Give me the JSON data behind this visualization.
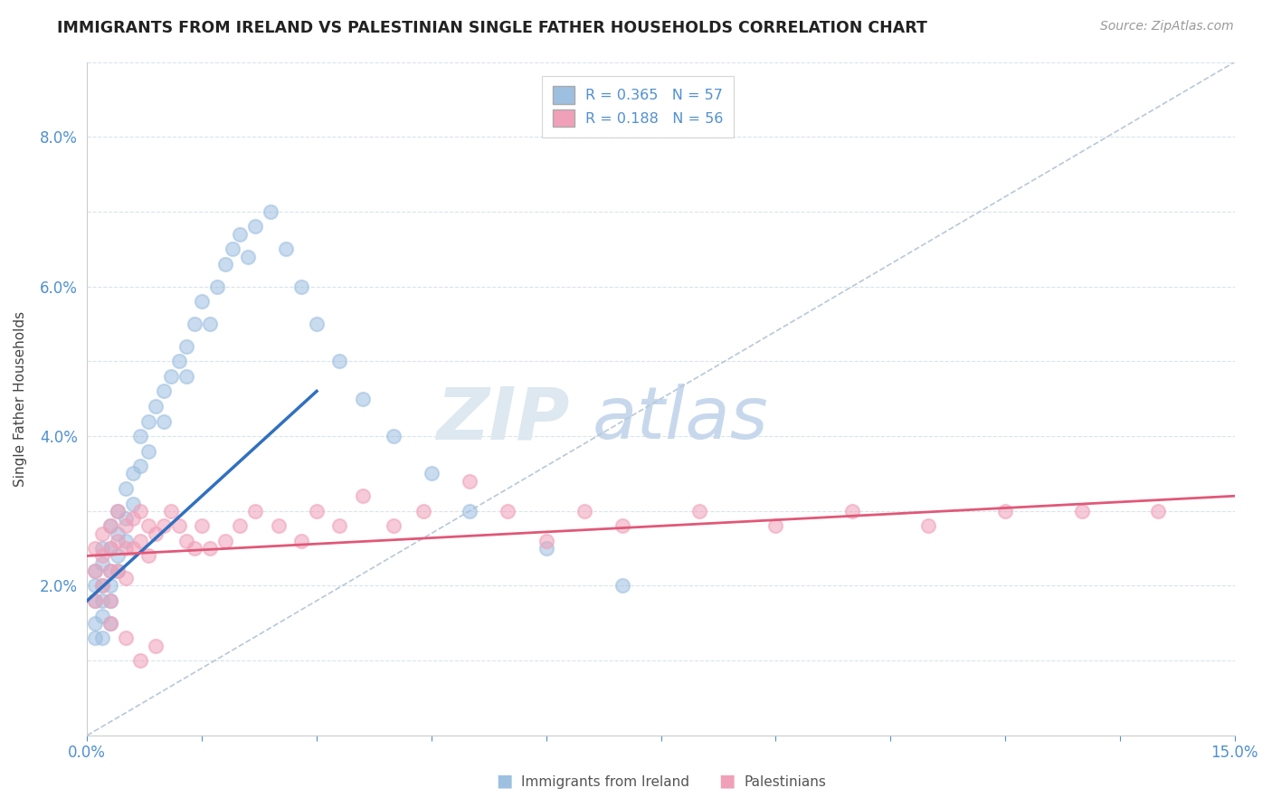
{
  "title": "IMMIGRANTS FROM IRELAND VS PALESTINIAN SINGLE FATHER HOUSEHOLDS CORRELATION CHART",
  "source": "Source: ZipAtlas.com",
  "ylabel": "Single Father Households",
  "xlim": [
    0.0,
    0.15
  ],
  "ylim": [
    0.0,
    0.09
  ],
  "xtick_vals": [
    0.0,
    0.015,
    0.03,
    0.045,
    0.06,
    0.075,
    0.09,
    0.105,
    0.12,
    0.135,
    0.15
  ],
  "ytick_vals": [
    0.0,
    0.01,
    0.02,
    0.03,
    0.04,
    0.05,
    0.06,
    0.07,
    0.08,
    0.09
  ],
  "ireland_color": "#9dbfe0",
  "palestine_color": "#f0a0b8",
  "ireland_line_color": "#3070c0",
  "palestine_line_color": "#e05878",
  "diag_color": "#b8c8d8",
  "tick_color": "#5090d0",
  "r_ireland": 0.365,
  "n_ireland": 57,
  "r_palestine": 0.188,
  "n_palestine": 56,
  "legend_label_ireland": "Immigrants from Ireland",
  "legend_label_palestine": "Palestinians",
  "ireland_x": [
    0.001,
    0.001,
    0.001,
    0.001,
    0.001,
    0.002,
    0.002,
    0.002,
    0.002,
    0.002,
    0.002,
    0.003,
    0.003,
    0.003,
    0.003,
    0.003,
    0.003,
    0.004,
    0.004,
    0.004,
    0.004,
    0.005,
    0.005,
    0.005,
    0.006,
    0.006,
    0.007,
    0.007,
    0.008,
    0.008,
    0.009,
    0.01,
    0.01,
    0.011,
    0.012,
    0.013,
    0.013,
    0.014,
    0.015,
    0.016,
    0.017,
    0.018,
    0.019,
    0.02,
    0.021,
    0.022,
    0.024,
    0.026,
    0.028,
    0.03,
    0.033,
    0.036,
    0.04,
    0.045,
    0.05,
    0.06,
    0.07
  ],
  "ireland_y": [
    0.022,
    0.02,
    0.018,
    0.015,
    0.013,
    0.025,
    0.023,
    0.02,
    0.018,
    0.016,
    0.013,
    0.028,
    0.025,
    0.022,
    0.02,
    0.018,
    0.015,
    0.03,
    0.027,
    0.024,
    0.022,
    0.033,
    0.029,
    0.026,
    0.035,
    0.031,
    0.04,
    0.036,
    0.042,
    0.038,
    0.044,
    0.046,
    0.042,
    0.048,
    0.05,
    0.052,
    0.048,
    0.055,
    0.058,
    0.055,
    0.06,
    0.063,
    0.065,
    0.067,
    0.064,
    0.068,
    0.07,
    0.065,
    0.06,
    0.055,
    0.05,
    0.045,
    0.04,
    0.035,
    0.03,
    0.025,
    0.02
  ],
  "palestine_x": [
    0.001,
    0.001,
    0.001,
    0.002,
    0.002,
    0.002,
    0.003,
    0.003,
    0.003,
    0.003,
    0.004,
    0.004,
    0.004,
    0.005,
    0.005,
    0.005,
    0.006,
    0.006,
    0.007,
    0.007,
    0.008,
    0.008,
    0.009,
    0.01,
    0.011,
    0.012,
    0.013,
    0.014,
    0.015,
    0.016,
    0.018,
    0.02,
    0.022,
    0.025,
    0.028,
    0.03,
    0.033,
    0.036,
    0.04,
    0.044,
    0.05,
    0.055,
    0.06,
    0.065,
    0.07,
    0.08,
    0.09,
    0.1,
    0.11,
    0.12,
    0.13,
    0.14,
    0.003,
    0.005,
    0.007,
    0.009
  ],
  "palestine_y": [
    0.025,
    0.022,
    0.018,
    0.027,
    0.024,
    0.02,
    0.028,
    0.025,
    0.022,
    0.018,
    0.03,
    0.026,
    0.022,
    0.028,
    0.025,
    0.021,
    0.029,
    0.025,
    0.03,
    0.026,
    0.028,
    0.024,
    0.027,
    0.028,
    0.03,
    0.028,
    0.026,
    0.025,
    0.028,
    0.025,
    0.026,
    0.028,
    0.03,
    0.028,
    0.026,
    0.03,
    0.028,
    0.032,
    0.028,
    0.03,
    0.034,
    0.03,
    0.026,
    0.03,
    0.028,
    0.03,
    0.028,
    0.03,
    0.028,
    0.03,
    0.03,
    0.03,
    0.015,
    0.013,
    0.01,
    0.012
  ],
  "ireland_trend_x": [
    0.0,
    0.03
  ],
  "ireland_trend_y": [
    0.018,
    0.046
  ],
  "palestine_trend_x": [
    0.0,
    0.15
  ],
  "palestine_trend_y": [
    0.024,
    0.032
  ]
}
